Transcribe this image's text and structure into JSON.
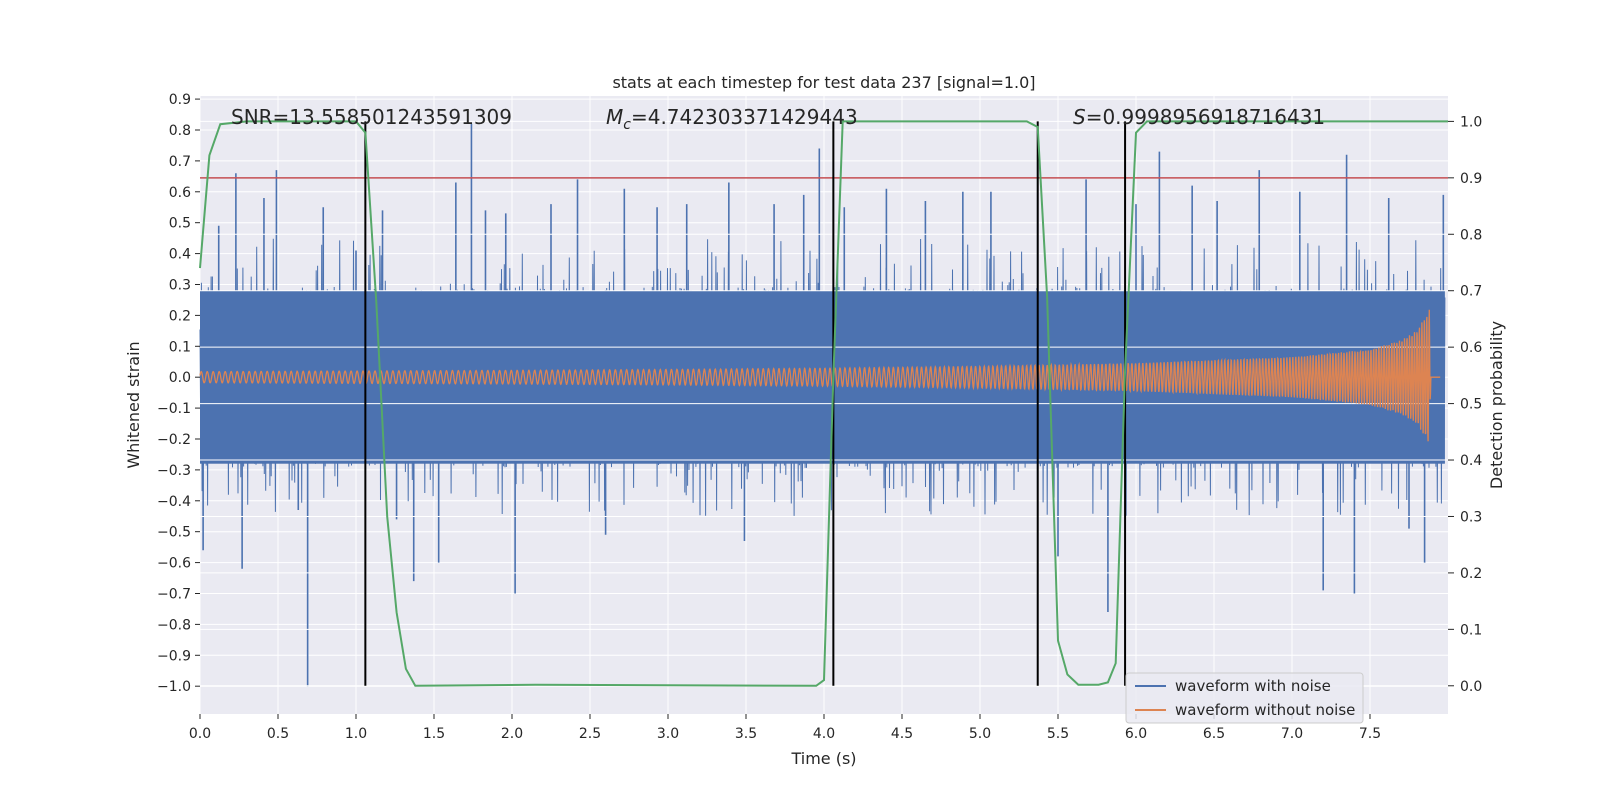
{
  "chart_data": {
    "type": "line",
    "title": "stats at each timestep for test data 237 [signal=1.0]",
    "xlabel": "Time (s)",
    "ylabel": "Whitened strain",
    "y2label": "Detection probability",
    "xlim": [
      0.0,
      8.0
    ],
    "ylim": [
      -1.09,
      0.91
    ],
    "y2lim": [
      -0.05,
      1.045
    ],
    "xticks": [
      0.0,
      0.5,
      1.0,
      1.5,
      2.0,
      2.5,
      3.0,
      3.5,
      4.0,
      4.5,
      5.0,
      5.5,
      6.0,
      6.5,
      7.0,
      7.5
    ],
    "xtick_labels": [
      "0.0",
      "0.5",
      "1.0",
      "1.5",
      "2.0",
      "2.5",
      "3.0",
      "3.5",
      "4.0",
      "4.5",
      "5.0",
      "5.5",
      "6.0",
      "6.5",
      "7.0",
      "7.5"
    ],
    "yticks": [
      0.9,
      0.8,
      0.7,
      0.6,
      0.5,
      0.4,
      0.3,
      0.2,
      0.1,
      0.0,
      -0.1,
      -0.2,
      -0.3,
      -0.4,
      -0.5,
      -0.6,
      -0.7,
      -0.8,
      -0.9,
      -1.0
    ],
    "ytick_labels": [
      "0.9",
      "0.8",
      "0.7",
      "0.6",
      "0.5",
      "0.4",
      "0.3",
      "0.2",
      "0.1",
      "0.0",
      "−0.1",
      "−0.2",
      "−0.3",
      "−0.4",
      "−0.5",
      "−0.6",
      "−0.7",
      "−0.8",
      "−0.9",
      "−1.0"
    ],
    "y2ticks": [
      1.0,
      0.9,
      0.8,
      0.7,
      0.6,
      0.5,
      0.4,
      0.3,
      0.2,
      0.1,
      0.0
    ],
    "y2tick_labels": [
      "1.0",
      "0.9",
      "0.8",
      "0.7",
      "0.6",
      "0.5",
      "0.4",
      "0.3",
      "0.2",
      "0.1",
      "0.0"
    ],
    "annotations": {
      "snr": "SNR=13.558501243591309",
      "mc_symbol": "M",
      "mc_subscript": "c",
      "mc_value": "=4.742303371429443",
      "s_symbol": "S",
      "s_value": "=0.9998956918716431"
    },
    "threshold_y2": 0.9,
    "event_markers_x": [
      1.06,
      4.06,
      5.37,
      5.93
    ],
    "series": [
      {
        "name": "waveform with noise",
        "color": "#4c72b0",
        "axis": "left",
        "band": {
          "lower": -0.28,
          "upper": 0.28
        },
        "spikes": [
          {
            "x": 0.02,
            "y": -0.56
          },
          {
            "x": 0.12,
            "y": 0.49
          },
          {
            "x": 0.23,
            "y": 0.66
          },
          {
            "x": 0.27,
            "y": -0.62
          },
          {
            "x": 0.41,
            "y": 0.58
          },
          {
            "x": 0.49,
            "y": 0.67
          },
          {
            "x": 0.63,
            "y": -0.43
          },
          {
            "x": 0.69,
            "y": -1.0
          },
          {
            "x": 0.79,
            "y": 0.55
          },
          {
            "x": 1.0,
            "y": 0.41
          },
          {
            "x": 1.17,
            "y": 0.54
          },
          {
            "x": 1.26,
            "y": -0.46
          },
          {
            "x": 1.37,
            "y": -0.66
          },
          {
            "x": 1.53,
            "y": -0.6
          },
          {
            "x": 1.64,
            "y": 0.63
          },
          {
            "x": 1.74,
            "y": 0.82
          },
          {
            "x": 1.83,
            "y": 0.54
          },
          {
            "x": 1.96,
            "y": 0.53
          },
          {
            "x": 2.02,
            "y": -0.7
          },
          {
            "x": 2.25,
            "y": 0.56
          },
          {
            "x": 2.42,
            "y": 0.64
          },
          {
            "x": 2.6,
            "y": -0.51
          },
          {
            "x": 2.72,
            "y": 0.61
          },
          {
            "x": 2.93,
            "y": 0.55
          },
          {
            "x": 3.12,
            "y": 0.56
          },
          {
            "x": 3.39,
            "y": 0.63
          },
          {
            "x": 3.49,
            "y": -0.53
          },
          {
            "x": 3.68,
            "y": 0.56
          },
          {
            "x": 3.87,
            "y": 0.59
          },
          {
            "x": 3.97,
            "y": 0.74
          },
          {
            "x": 4.13,
            "y": 0.55
          },
          {
            "x": 4.4,
            "y": 0.61
          },
          {
            "x": 4.65,
            "y": 0.57
          },
          {
            "x": 4.89,
            "y": 0.6
          },
          {
            "x": 5.07,
            "y": 0.6
          },
          {
            "x": 5.37,
            "y": 0.72
          },
          {
            "x": 5.5,
            "y": -0.58
          },
          {
            "x": 5.68,
            "y": 0.64
          },
          {
            "x": 5.82,
            "y": -0.76
          },
          {
            "x": 6.0,
            "y": 0.56
          },
          {
            "x": 6.15,
            "y": 0.73
          },
          {
            "x": 6.36,
            "y": 0.62
          },
          {
            "x": 6.52,
            "y": 0.57
          },
          {
            "x": 6.79,
            "y": 0.67
          },
          {
            "x": 7.05,
            "y": 0.6
          },
          {
            "x": 7.2,
            "y": -0.69
          },
          {
            "x": 7.35,
            "y": 0.72
          },
          {
            "x": 7.4,
            "y": -0.7
          },
          {
            "x": 7.62,
            "y": 0.58
          },
          {
            "x": 7.75,
            "y": -0.49
          },
          {
            "x": 7.85,
            "y": -0.6
          },
          {
            "x": 7.97,
            "y": 0.59
          }
        ]
      },
      {
        "name": "waveform without noise",
        "color": "#dd8452",
        "axis": "left",
        "envelope": [
          {
            "x": 0.0,
            "amp": 0.018
          },
          {
            "x": 1.0,
            "amp": 0.02
          },
          {
            "x": 2.0,
            "amp": 0.022
          },
          {
            "x": 3.0,
            "amp": 0.025
          },
          {
            "x": 4.0,
            "amp": 0.029
          },
          {
            "x": 5.0,
            "amp": 0.035
          },
          {
            "x": 6.0,
            "amp": 0.045
          },
          {
            "x": 6.5,
            "amp": 0.055
          },
          {
            "x": 7.0,
            "amp": 0.065
          },
          {
            "x": 7.5,
            "amp": 0.09
          },
          {
            "x": 7.7,
            "amp": 0.12
          },
          {
            "x": 7.8,
            "amp": 0.15
          },
          {
            "x": 7.86,
            "amp": 0.2
          },
          {
            "x": 7.88,
            "amp": 0.22
          },
          {
            "x": 7.89,
            "amp": 0.0
          },
          {
            "x": 7.95,
            "amp": 0.0
          }
        ]
      },
      {
        "name": "detection probability",
        "color": "#55a868",
        "axis": "right",
        "points": [
          {
            "x": 0.0,
            "y": 0.74
          },
          {
            "x": 0.06,
            "y": 0.94
          },
          {
            "x": 0.13,
            "y": 0.995
          },
          {
            "x": 0.3,
            "y": 1.0
          },
          {
            "x": 1.0,
            "y": 1.0
          },
          {
            "x": 1.06,
            "y": 0.98
          },
          {
            "x": 1.13,
            "y": 0.68
          },
          {
            "x": 1.2,
            "y": 0.3
          },
          {
            "x": 1.26,
            "y": 0.13
          },
          {
            "x": 1.32,
            "y": 0.03
          },
          {
            "x": 1.38,
            "y": 0.0
          },
          {
            "x": 2.15,
            "y": 0.002
          },
          {
            "x": 3.95,
            "y": 0.0
          },
          {
            "x": 4.0,
            "y": 0.01
          },
          {
            "x": 4.06,
            "y": 0.55
          },
          {
            "x": 4.12,
            "y": 1.0
          },
          {
            "x": 5.3,
            "y": 1.0
          },
          {
            "x": 5.37,
            "y": 0.99
          },
          {
            "x": 5.43,
            "y": 0.69
          },
          {
            "x": 5.5,
            "y": 0.08
          },
          {
            "x": 5.56,
            "y": 0.02
          },
          {
            "x": 5.63,
            "y": 0.002
          },
          {
            "x": 5.76,
            "y": 0.002
          },
          {
            "x": 5.82,
            "y": 0.006
          },
          {
            "x": 5.87,
            "y": 0.04
          },
          {
            "x": 5.93,
            "y": 0.56
          },
          {
            "x": 6.0,
            "y": 0.98
          },
          {
            "x": 6.07,
            "y": 1.0
          },
          {
            "x": 8.0,
            "y": 1.0
          }
        ]
      },
      {
        "name": "threshold",
        "color": "#c44e52",
        "axis": "right",
        "points": [
          {
            "x": 0.0,
            "y": 0.9
          },
          {
            "x": 8.0,
            "y": 0.9
          }
        ]
      }
    ],
    "legend": {
      "position": "lower-right",
      "entries": [
        {
          "label": "waveform with noise",
          "color": "#4c72b0"
        },
        {
          "label": "waveform without noise",
          "color": "#dd8452"
        }
      ]
    },
    "colors": {
      "plot_background": "#eaeaf2",
      "grid": "#ffffff",
      "event_marker": "#000000",
      "text": "#262626"
    }
  }
}
